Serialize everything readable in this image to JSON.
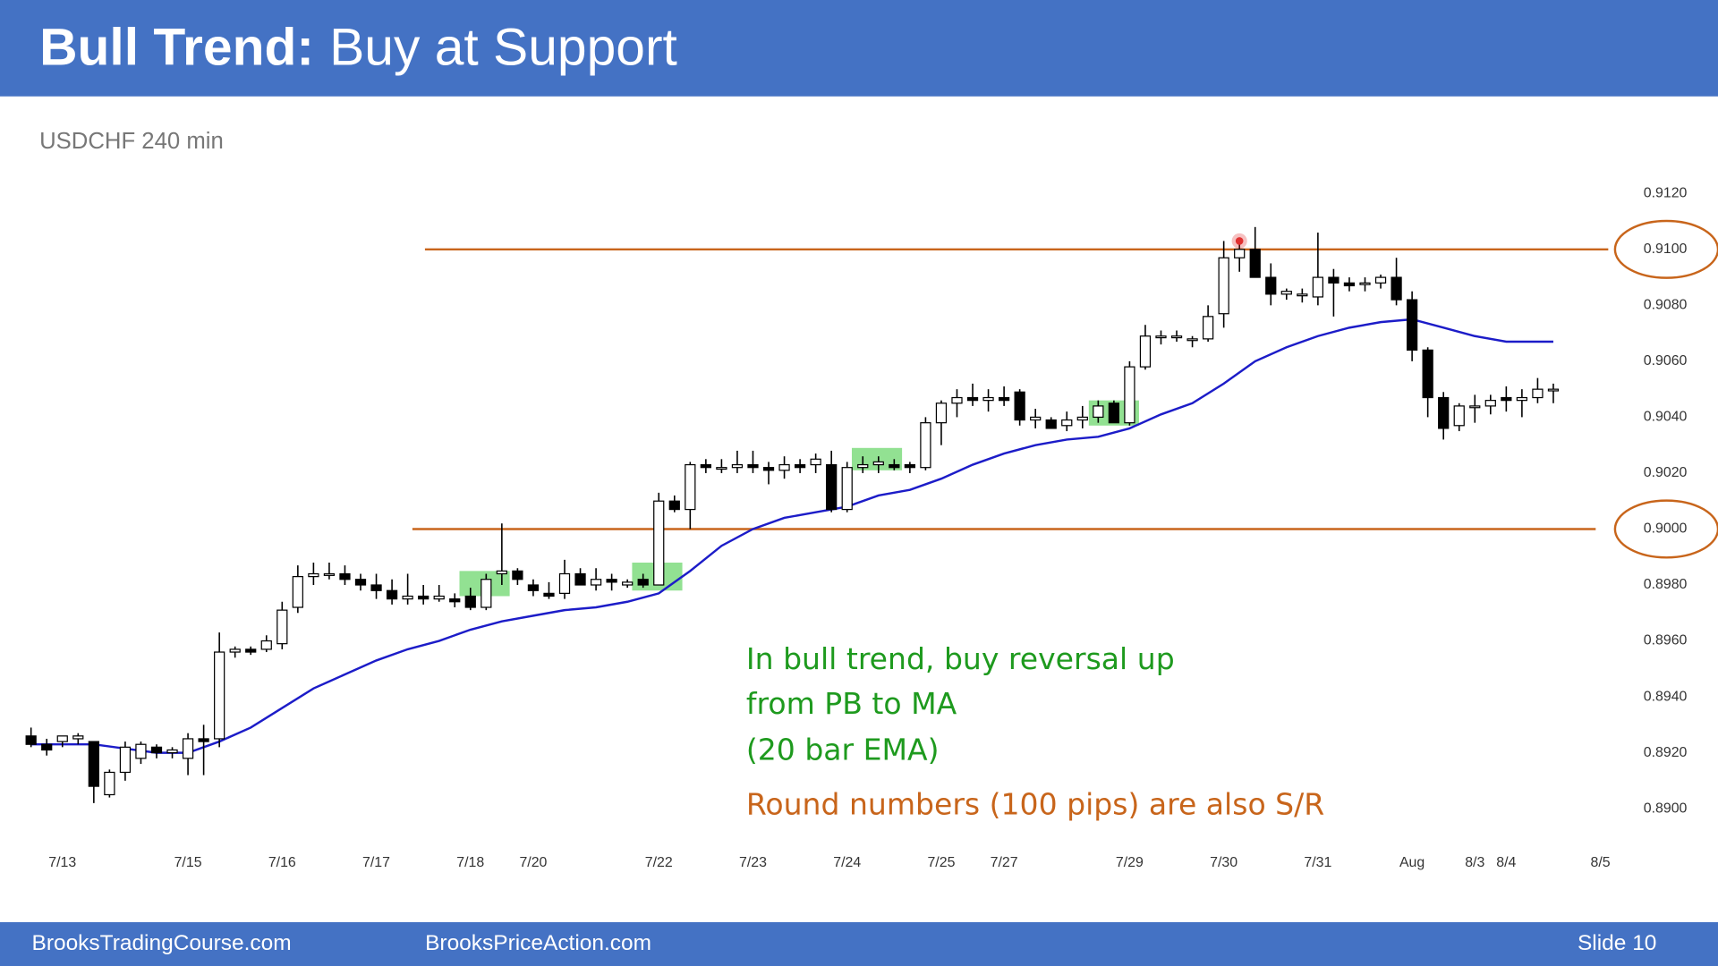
{
  "header": {
    "title_bold": "Bull Trend:",
    "title_rest": "Buy at Support"
  },
  "footer": {
    "left": "BrooksTradingCourse.com",
    "center": "BrooksPriceAction.com",
    "slide": "Slide 10"
  },
  "chart_data": {
    "type": "candlestick",
    "subtitle": "USDCHF 240 min",
    "up_color": "#ffffff",
    "down_color": "#000000",
    "wick_color": "#000000",
    "x": [
      0,
      1,
      2,
      3,
      4,
      5,
      6,
      7,
      8,
      9,
      10,
      11,
      12,
      13,
      14,
      15,
      16,
      17,
      18,
      19,
      20,
      21,
      22,
      23,
      24,
      25,
      26,
      27,
      28,
      29,
      30,
      31,
      32,
      33,
      34,
      35,
      36,
      37,
      38,
      39,
      40,
      41,
      42,
      43,
      44,
      45,
      46,
      47,
      48,
      49,
      50,
      51,
      52,
      53,
      54,
      55,
      56,
      57,
      58,
      59,
      60,
      61,
      62,
      63,
      64,
      65,
      66,
      67,
      68,
      69,
      70,
      71,
      72,
      73,
      74,
      75,
      76,
      77,
      78,
      79,
      80,
      81,
      82,
      83,
      84,
      85,
      86,
      87,
      88,
      89,
      90,
      91,
      92,
      93,
      94,
      95,
      96,
      97
    ],
    "open": [
      0.8926,
      0.8923,
      0.8924,
      0.8925,
      0.8924,
      0.8905,
      0.8913,
      0.8918,
      0.8922,
      0.892,
      0.8918,
      0.8925,
      0.8925,
      0.8956,
      0.8957,
      0.8957,
      0.8959,
      0.8972,
      0.8983,
      0.8984,
      0.8984,
      0.8982,
      0.898,
      0.8978,
      0.8975,
      0.8976,
      0.8975,
      0.8975,
      0.8976,
      0.8972,
      0.8984,
      0.8985,
      0.898,
      0.8977,
      0.8977,
      0.8984,
      0.898,
      0.8982,
      0.898,
      0.8982,
      0.898,
      0.901,
      0.9007,
      0.9023,
      0.9022,
      0.9022,
      0.9023,
      0.9022,
      0.9021,
      0.9023,
      0.9023,
      0.9023,
      0.9007,
      0.9022,
      0.9023,
      0.9023,
      0.9023,
      0.9022,
      0.9038,
      0.9045,
      0.9047,
      0.9046,
      0.9047,
      0.9049,
      0.9039,
      0.9039,
      0.9037,
      0.9039,
      0.904,
      0.9045,
      0.9038,
      0.9058,
      0.9069,
      0.9069,
      0.9068,
      0.9068,
      0.9077,
      0.9097,
      0.91,
      0.909,
      0.9084,
      0.9084,
      0.9083,
      0.909,
      0.9088,
      0.9088,
      0.9088,
      0.909,
      0.9082,
      0.9064,
      0.9047,
      0.9037,
      0.9044,
      0.9044,
      0.9047,
      0.9046,
      0.9047,
      0.905
    ],
    "high": [
      0.8929,
      0.8925,
      0.8926,
      0.8927,
      0.8924,
      0.8914,
      0.8924,
      0.8924,
      0.8923,
      0.8922,
      0.8927,
      0.893,
      0.8963,
      0.8958,
      0.8958,
      0.8962,
      0.8974,
      0.8987,
      0.8988,
      0.8988,
      0.8987,
      0.8984,
      0.8984,
      0.8982,
      0.8984,
      0.898,
      0.898,
      0.8977,
      0.8979,
      0.8984,
      0.9002,
      0.8986,
      0.8982,
      0.8981,
      0.8989,
      0.8986,
      0.8986,
      0.8984,
      0.8982,
      0.8984,
      0.9013,
      0.9012,
      0.9024,
      0.9025,
      0.9025,
      0.9028,
      0.9028,
      0.9024,
      0.9026,
      0.9025,
      0.9027,
      0.9028,
      0.9024,
      0.9026,
      0.9026,
      0.9025,
      0.9024,
      0.904,
      0.9046,
      0.905,
      0.9052,
      0.905,
      0.9051,
      0.905,
      0.9043,
      0.904,
      0.9042,
      0.9044,
      0.9046,
      0.9046,
      0.906,
      0.9073,
      0.9071,
      0.9071,
      0.9069,
      0.908,
      0.9103,
      0.9103,
      0.9108,
      0.9095,
      0.9086,
      0.9086,
      0.9106,
      0.9093,
      0.909,
      0.909,
      0.9091,
      0.9097,
      0.9085,
      0.9065,
      0.9049,
      0.9045,
      0.9048,
      0.9048,
      0.9051,
      0.905,
      0.9054,
      0.9052
    ],
    "low": [
      0.8922,
      0.8919,
      0.8922,
      0.8923,
      0.8902,
      0.8904,
      0.891,
      0.8916,
      0.8918,
      0.8918,
      0.8912,
      0.8912,
      0.8922,
      0.8954,
      0.8955,
      0.8956,
      0.8957,
      0.897,
      0.898,
      0.8982,
      0.898,
      0.8978,
      0.8975,
      0.8973,
      0.8973,
      0.8973,
      0.8974,
      0.8972,
      0.8971,
      0.8971,
      0.898,
      0.898,
      0.8976,
      0.8975,
      0.8975,
      0.898,
      0.8978,
      0.8978,
      0.8979,
      0.8979,
      0.898,
      0.9006,
      0.9,
      0.902,
      0.902,
      0.902,
      0.902,
      0.9016,
      0.9018,
      0.902,
      0.902,
      0.9006,
      0.9006,
      0.902,
      0.902,
      0.9021,
      0.902,
      0.9021,
      0.903,
      0.904,
      0.9044,
      0.9042,
      0.9044,
      0.9037,
      0.9036,
      0.9036,
      0.9035,
      0.9036,
      0.9038,
      0.9038,
      0.9037,
      0.9057,
      0.9066,
      0.9067,
      0.9065,
      0.9067,
      0.9072,
      0.9092,
      0.909,
      0.908,
      0.9082,
      0.9081,
      0.908,
      0.9076,
      0.9085,
      0.9085,
      0.9086,
      0.908,
      0.906,
      0.904,
      0.9032,
      0.9035,
      0.9038,
      0.9041,
      0.9042,
      0.904,
      0.9045,
      0.9045
    ],
    "close": [
      0.8923,
      0.8921,
      0.8926,
      0.8926,
      0.8908,
      0.8913,
      0.8922,
      0.8923,
      0.892,
      0.8921,
      0.8925,
      0.8924,
      0.8956,
      0.8957,
      0.8956,
      0.896,
      0.8971,
      0.8983,
      0.8984,
      0.8984,
      0.8982,
      0.898,
      0.8978,
      0.8975,
      0.8976,
      0.8975,
      0.8976,
      0.8974,
      0.8972,
      0.8982,
      0.8985,
      0.8982,
      0.8978,
      0.8976,
      0.8984,
      0.898,
      0.8982,
      0.8981,
      0.8981,
      0.898,
      0.901,
      0.9007,
      0.9023,
      0.9022,
      0.9022,
      0.9023,
      0.9022,
      0.9021,
      0.9023,
      0.9022,
      0.9025,
      0.9007,
      0.9022,
      0.9023,
      0.9024,
      0.9022,
      0.9022,
      0.9038,
      0.9045,
      0.9047,
      0.9046,
      0.9047,
      0.9046,
      0.9039,
      0.904,
      0.9036,
      0.9039,
      0.904,
      0.9044,
      0.9038,
      0.9058,
      0.9069,
      0.9069,
      0.9069,
      0.9068,
      0.9076,
      0.9097,
      0.91,
      0.909,
      0.9084,
      0.9085,
      0.9084,
      0.909,
      0.9088,
      0.9087,
      0.9088,
      0.909,
      0.9082,
      0.9064,
      0.9047,
      0.9036,
      0.9044,
      0.9044,
      0.9046,
      0.9046,
      0.9047,
      0.905,
      0.905
    ],
    "ma_line": {
      "color": "#1c1cc8",
      "x": [
        0,
        4,
        8,
        10,
        12,
        14,
        16,
        18,
        20,
        22,
        24,
        26,
        28,
        30,
        32,
        34,
        36,
        38,
        40,
        42,
        44,
        46,
        48,
        50,
        52,
        54,
        56,
        58,
        60,
        62,
        64,
        66,
        68,
        70,
        72,
        74,
        76,
        78,
        80,
        82,
        84,
        86,
        88,
        90,
        92,
        94,
        96,
        97
      ],
      "values": [
        0.8923,
        0.8923,
        0.892,
        0.892,
        0.8924,
        0.8929,
        0.8936,
        0.8943,
        0.8948,
        0.8953,
        0.8957,
        0.896,
        0.8964,
        0.8967,
        0.8969,
        0.8971,
        0.8972,
        0.8974,
        0.8977,
        0.8985,
        0.8994,
        0.9,
        0.9004,
        0.9006,
        0.9008,
        0.9012,
        0.9014,
        0.9018,
        0.9023,
        0.9027,
        0.903,
        0.9032,
        0.9033,
        0.9036,
        0.9041,
        0.9045,
        0.9052,
        0.906,
        0.9065,
        0.9069,
        0.9072,
        0.9074,
        0.9075,
        0.9072,
        0.9069,
        0.9067,
        0.9067,
        0.9067
      ]
    },
    "hlines": [
      {
        "value": 0.91,
        "x": [
          25.1,
          100.5
        ],
        "color": "#c8651b"
      },
      {
        "value": 0.9,
        "x": [
          24.3,
          99.7
        ],
        "color": "#c8651b"
      }
    ],
    "highlights": [
      {
        "x": [
          27.3,
          30.5
        ],
        "y": [
          0.8976,
          0.8985
        ],
        "color": "#7fdc7f"
      },
      {
        "x": [
          38.3,
          41.5
        ],
        "y": [
          0.8978,
          0.8988
        ],
        "color": "#7fdc7f"
      },
      {
        "x": [
          52.3,
          55.5
        ],
        "y": [
          0.9021,
          0.9029
        ],
        "color": "#7fdc7f"
      },
      {
        "x": [
          67.4,
          70.6
        ],
        "y": [
          0.9037,
          0.9046
        ],
        "color": "#7fdc7f"
      }
    ],
    "markers": [
      {
        "x": 77,
        "y": 0.9103,
        "color": "#e03030"
      }
    ],
    "circled_yticks": [
      10,
      5
    ],
    "circle_color": "#c8651b",
    "xlim": [
      -1,
      101
    ],
    "ylim": [
      0.8888,
      0.9132
    ],
    "xticks": [
      {
        "value": 2,
        "label": "7/13"
      },
      {
        "value": 10,
        "label": "7/15"
      },
      {
        "value": 16,
        "label": "7/16"
      },
      {
        "value": 22,
        "label": "7/17"
      },
      {
        "value": 28,
        "label": "7/18"
      },
      {
        "value": 32,
        "label": "7/20"
      },
      {
        "value": 40,
        "label": "7/22"
      },
      {
        "value": 46,
        "label": "7/23"
      },
      {
        "value": 52,
        "label": "7/24"
      },
      {
        "value": 58,
        "label": "7/25"
      },
      {
        "value": 62,
        "label": "7/27"
      },
      {
        "value": 70,
        "label": "7/29"
      },
      {
        "value": 76,
        "label": "7/30"
      },
      {
        "value": 82,
        "label": "7/31"
      },
      {
        "value": 88,
        "label": "Aug"
      },
      {
        "value": 92,
        "label": "8/3"
      },
      {
        "value": 94,
        "label": "8/4"
      },
      {
        "value": 100,
        "label": "8/5"
      }
    ],
    "yticks": [
      {
        "value": 0.89,
        "label": "0.8900"
      },
      {
        "value": 0.892,
        "label": "0.8920"
      },
      {
        "value": 0.894,
        "label": "0.8940"
      },
      {
        "value": 0.896,
        "label": "0.8960"
      },
      {
        "value": 0.898,
        "label": "0.8980"
      },
      {
        "value": 0.9,
        "label": "0.9000"
      },
      {
        "value": 0.902,
        "label": "0.9020"
      },
      {
        "value": 0.904,
        "label": "0.9040"
      },
      {
        "value": 0.906,
        "label": "0.9060"
      },
      {
        "value": 0.908,
        "label": "0.9080"
      },
      {
        "value": 0.91,
        "label": "0.9100"
      },
      {
        "value": 0.912,
        "label": "0.9120"
      }
    ],
    "grid": false,
    "notes": [
      {
        "text": "In bull trend, buy reversal up",
        "color": "#1e9a1e"
      },
      {
        "text": "from PB to MA",
        "color": "#1e9a1e"
      },
      {
        "text": "(20 bar EMA)",
        "color": "#1e9a1e"
      },
      {
        "text": "Round numbers (100 pips) are also S/R",
        "color": "#c8651b"
      }
    ]
  }
}
